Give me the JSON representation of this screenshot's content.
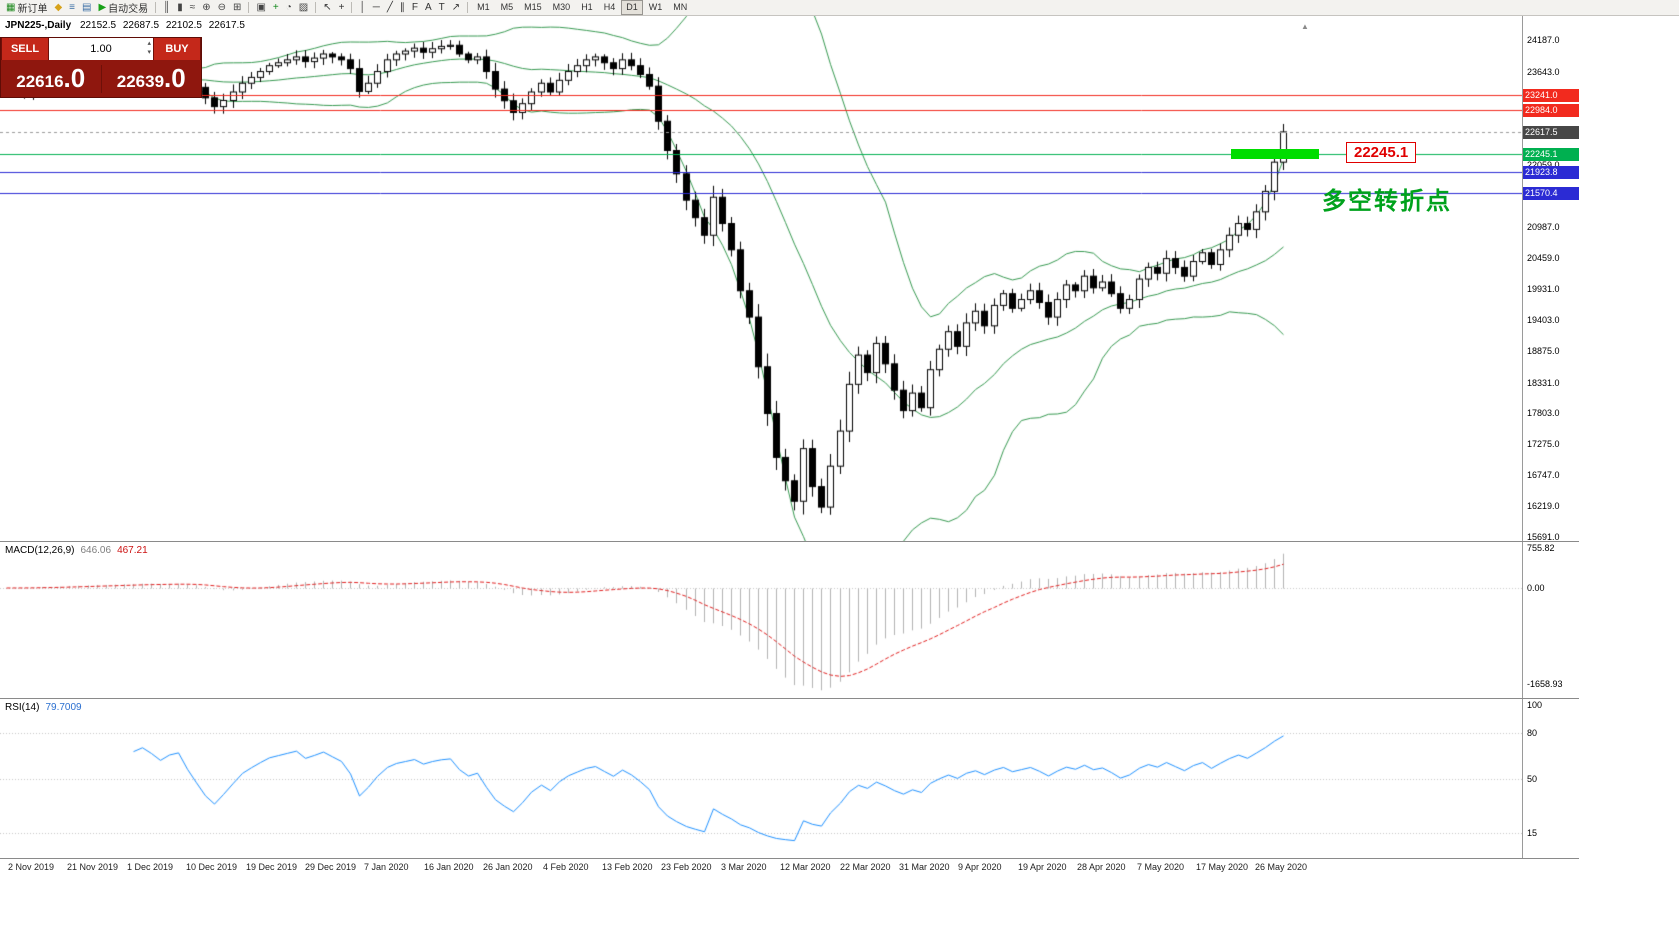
{
  "toolbar": {
    "groups": [
      {
        "items": [
          {
            "name": "new-order-button",
            "icon": "new-order-icon",
            "glyph": "▦",
            "color": "#1f8a1f",
            "label": "新订单"
          },
          {
            "name": "charts-profile-button",
            "icon": "charts-profile-icon",
            "glyph": "◆",
            "color": "#d7a21a"
          },
          {
            "name": "market-watch-button",
            "icon": "market-watch-icon",
            "glyph": "≡",
            "color": "#3a6ea5"
          },
          {
            "name": "terminal-panel-button",
            "icon": "terminal-panel-icon",
            "glyph": "▤",
            "color": "#3a6ea5"
          },
          {
            "name": "auto-trading-button",
            "icon": "auto-trading-icon",
            "glyph": "▶",
            "color": "#17a017",
            "label": "自动交易"
          }
        ]
      },
      {
        "items": [
          {
            "name": "bar-chart-button",
            "icon": "bar-chart-icon",
            "glyph": "║",
            "color": "#444444"
          },
          {
            "name": "candlestick-chart-button",
            "icon": "candlestick-chart-icon",
            "glyph": "▮",
            "color": "#444444"
          },
          {
            "name": "line-chart-button",
            "icon": "line-chart-icon",
            "glyph": "≈",
            "color": "#444444"
          },
          {
            "name": "zoom-in-button",
            "icon": "zoom-in-icon",
            "glyph": "⊕",
            "color": "#444444"
          },
          {
            "name": "zoom-out-button",
            "icon": "zoom-out-icon",
            "glyph": "⊖",
            "color": "#444444"
          },
          {
            "name": "tile-windows-button",
            "icon": "tile-windows-icon",
            "glyph": "⊞",
            "color": "#444444"
          }
        ]
      },
      {
        "items": [
          {
            "name": "arrange-windows-button",
            "icon": "arrange-windows-icon",
            "glyph": "▣",
            "color": "#444444"
          },
          {
            "name": "indicators-button",
            "icon": "indicators-icon",
            "glyph": "+",
            "color": "#12881a"
          },
          {
            "name": "periods-button",
            "icon": "periods-icon",
            "glyph": "◔",
            "color": "#444444"
          },
          {
            "name": "templates-button",
            "icon": "templates-icon",
            "glyph": "▨",
            "color": "#444444"
          }
        ]
      },
      {
        "items": [
          {
            "name": "cursor-button",
            "icon": "cursor-icon",
            "glyph": "↖",
            "color": "#333333"
          },
          {
            "name": "crosshair-button",
            "icon": "crosshair-icon",
            "glyph": "+",
            "color": "#333333"
          }
        ]
      },
      {
        "items": [
          {
            "name": "vertical-line-button",
            "icon": "vertical-line-icon",
            "glyph": "│",
            "color": "#333333"
          },
          {
            "name": "horizontal-line-button",
            "icon": "horizontal-line-icon",
            "glyph": "─",
            "color": "#333333"
          },
          {
            "name": "trendline-button",
            "icon": "trendline-icon",
            "glyph": "╱",
            "color": "#333333"
          },
          {
            "name": "equidistant-channel-button",
            "icon": "equidistant-channel-icon",
            "glyph": "∥",
            "color": "#333333"
          },
          {
            "name": "fibonacci-button",
            "icon": "fibonacci-icon",
            "glyph": "F",
            "color": "#333333"
          },
          {
            "name": "text-button",
            "icon": "text-icon",
            "glyph": "A",
            "color": "#333333"
          },
          {
            "name": "text-label-button",
            "icon": "text-label-icon",
            "glyph": "T",
            "color": "#333333"
          },
          {
            "name": "arrows-button",
            "icon": "arrows-icon",
            "glyph": "↗",
            "color": "#333333"
          }
        ]
      }
    ],
    "timeframes": [
      "M1",
      "M5",
      "M15",
      "M30",
      "H1",
      "H4",
      "D1",
      "W1",
      "MN"
    ],
    "active_timeframe": "D1"
  },
  "icons": {
    "spinner_up": "▴",
    "spinner_down": "▾",
    "chart_shift_marker": "▲"
  },
  "trade_panel": {
    "sell_label": "SELL",
    "buy_label": "BUY",
    "volume": "1.00",
    "sell_price_main": "22616",
    "sell_price_frac": ".0",
    "buy_price_main": "22639",
    "buy_price_frac": ".0"
  },
  "chart_header": {
    "symbol_period": "JPN225-,Daily",
    "open": "22152.5",
    "high": "22687.5",
    "low": "22102.5",
    "close": "22617.5"
  },
  "annotations": {
    "price_label": "22245.1",
    "turning_point_text": "多空转折点",
    "zone_color": "#00dd00",
    "zone_value": 22245.1
  },
  "macd_panel": {
    "label": "MACD(12,26,9)",
    "value_main": "646.06",
    "value_signal": "467.21",
    "axis_labels": [
      {
        "text": "755.82",
        "value": 755.82
      },
      {
        "text": "0.00",
        "value": 0
      },
      {
        "text": "-1658.93",
        "value": -1658.93
      }
    ]
  },
  "rsi_panel": {
    "label": "RSI(14)",
    "value": "79.7009",
    "axis_labels": [
      {
        "text": "100",
        "value": 100
      },
      {
        "text": "80",
        "value": 80
      },
      {
        "text": "50",
        "value": 50
      },
      {
        "text": "15",
        "value": 15
      }
    ],
    "levels": [
      80,
      50,
      15
    ]
  },
  "price_axis": {
    "plain_labels": [
      {
        "text": "24187.0",
        "value": 24187
      },
      {
        "text": "23643.0",
        "value": 23643
      },
      {
        "text": "22059.0",
        "value": 22059
      },
      {
        "text": "20987.0",
        "value": 20987
      },
      {
        "text": "20459.0",
        "value": 20459
      },
      {
        "text": "19931.0",
        "value": 19931
      },
      {
        "text": "19403.0",
        "value": 19403
      },
      {
        "text": "18875.0",
        "value": 18875
      },
      {
        "text": "18331.0",
        "value": 18331
      },
      {
        "text": "17803.0",
        "value": 17803
      },
      {
        "text": "17275.0",
        "value": 17275
      },
      {
        "text": "16747.0",
        "value": 16747
      },
      {
        "text": "16219.0",
        "value": 16219
      },
      {
        "text": "15691.0",
        "value": 15691
      }
    ],
    "line_labels": [
      {
        "text": "23241.0",
        "value": 23241.0,
        "color": "#f22a1e"
      },
      {
        "text": "22984.0",
        "value": 22984.0,
        "color": "#f22a1e"
      },
      {
        "text": "22245.1",
        "value": 22245.1,
        "color": "#00b050"
      },
      {
        "text": "21923.8",
        "value": 21923.8,
        "color": "#2b2bd4"
      },
      {
        "text": "21570.4",
        "value": 21570.4,
        "color": "#2b2bd4"
      }
    ],
    "current_label": {
      "text": "22617.5",
      "value": 22617.5,
      "bg": "#474747"
    }
  },
  "date_axis": [
    "2 Nov 2019",
    "21 Nov 2019",
    "1 Dec 2019",
    "10 Dec 2019",
    "19 Dec 2019",
    "29 Dec 2019",
    "7 Jan 2020",
    "16 Jan 2020",
    "26 Jan 2020",
    "4 Feb 2020",
    "13 Feb 2020",
    "23 Feb 2020",
    "3 Mar 2020",
    "12 Mar 2020",
    "22 Mar 2020",
    "31 Mar 2020",
    "9 Apr 2020",
    "19 Apr 2020",
    "28 Apr 2020",
    "7 May 2020",
    "17 May 2020",
    "26 May 2020"
  ],
  "chart_data": {
    "type": "candlestick",
    "symbol": "JPN225-",
    "timeframe": "Daily",
    "last_ohlc": {
      "open": 22152.5,
      "high": 22687.5,
      "low": 22102.5,
      "close": 22617.5
    },
    "y_axis_range": [
      15620,
      24600
    ],
    "closes": [
      23310,
      23355,
      23285,
      23405,
      23450,
      23385,
      23425,
      23500,
      23480,
      23520,
      23550,
      23485,
      23560,
      23605,
      23580,
      23640,
      23600,
      23550,
      23620,
      23650,
      23520,
      23380,
      23200,
      23050,
      23155,
      23300,
      23450,
      23550,
      23650,
      23750,
      23800,
      23850,
      23900,
      23820,
      23880,
      23950,
      23900,
      23850,
      23700,
      23310,
      23450,
      23650,
      23850,
      23950,
      24000,
      24050,
      23980,
      24040,
      24080,
      24100,
      23950,
      23850,
      23900,
      23650,
      23350,
      23150,
      22950,
      23100,
      23300,
      23450,
      23300,
      23500,
      23650,
      23750,
      23850,
      23900,
      23800,
      23700,
      23850,
      23750,
      23600,
      23400,
      22800,
      22300,
      21900,
      21450,
      21150,
      20850,
      21500,
      21050,
      20600,
      19900,
      19450,
      18600,
      17800,
      17050,
      16650,
      16300,
      17200,
      16550,
      16200,
      16900,
      17500,
      18300,
      18800,
      18500,
      19000,
      18650,
      18200,
      17850,
      18150,
      17900,
      18550,
      18900,
      19200,
      18950,
      19350,
      19550,
      19300,
      19650,
      19850,
      19600,
      19750,
      19900,
      19700,
      19450,
      19750,
      20000,
      19900,
      20150,
      19950,
      20050,
      19850,
      19600,
      19750,
      20100,
      20300,
      20200,
      20450,
      20300,
      20150,
      20400,
      20550,
      20350,
      20600,
      20850,
      21050,
      20950,
      21250,
      21600,
      22100,
      22617.5
    ],
    "horizontal_lines": [
      {
        "value": 23241.0,
        "color": "#f22a1e"
      },
      {
        "value": 22984.0,
        "color": "#f22a1e"
      },
      {
        "value": 22245.1,
        "color": "#00b050"
      },
      {
        "value": 21923.8,
        "color": "#2b2bd4"
      },
      {
        "value": 21570.4,
        "color": "#2b2bd4"
      }
    ],
    "bid_price": 22617.5,
    "bollinger": {
      "period": 20,
      "deviation": 2,
      "color": "#35984f"
    },
    "macd": {
      "fast": 12,
      "slow": 26,
      "signal": 9,
      "current_main": 646.06,
      "current_signal": 467.21
    },
    "rsi": {
      "period": 14,
      "current": 79.7009
    },
    "highlight_zone": {
      "value": 22245.1,
      "x_start_bar": 135.5,
      "x_end_bar": 145.2
    }
  }
}
